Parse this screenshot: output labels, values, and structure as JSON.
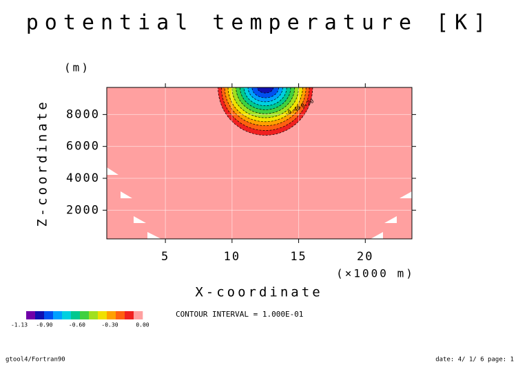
{
  "chart_data": {
    "type": "contour",
    "title": "potential temperature [K]",
    "x_label": "X-coordinate",
    "x_unit": "(×1000 m)",
    "y_label": "Z-coordinate",
    "y_unit": "(m)",
    "xlim": [
      0.6,
      23.5
    ],
    "ylim": [
      200,
      9700
    ],
    "xticks": [
      5,
      10,
      15,
      20
    ],
    "yticks": [
      2000,
      4000,
      6000,
      8000
    ],
    "grid": true,
    "background_color": "#ffa0a0",
    "center_x": 12.5,
    "bands": [
      {
        "value": -0.1,
        "color": "#f02020",
        "halfwidth": 3.55,
        "bottom": 6700
      },
      {
        "value": -0.2,
        "color": "#ff6010",
        "halfwidth": 3.3,
        "bottom": 7000
      },
      {
        "value": -0.3,
        "color": "#ffa000",
        "halfwidth": 3.05,
        "bottom": 7300
      },
      {
        "value": -0.4,
        "color": "#f0e000",
        "halfwidth": 2.8,
        "bottom": 7550
      },
      {
        "value": -0.5,
        "color": "#a0e020",
        "halfwidth": 2.5,
        "bottom": 7800
      },
      {
        "value": -0.6,
        "color": "#40d040",
        "halfwidth": 2.2,
        "bottom": 8050
      },
      {
        "value": -0.7,
        "color": "#00c890",
        "halfwidth": 1.9,
        "bottom": 8300
      },
      {
        "value": -0.8,
        "color": "#00d0e0",
        "halfwidth": 1.6,
        "bottom": 8550
      },
      {
        "value": -0.9,
        "color": "#00a0ff",
        "halfwidth": 1.3,
        "bottom": 8800
      },
      {
        "value": -1.0,
        "color": "#0050f0",
        "halfwidth": 1.0,
        "bottom": 9050
      },
      {
        "value": -1.1,
        "color": "#1010b0",
        "halfwidth": 0.6,
        "bottom": 9350
      }
    ],
    "contour_labels": [
      {
        "value": -0.4,
        "label": "-0.40"
      },
      {
        "value": -0.2,
        "label": "-0.20"
      }
    ],
    "colorbar": {
      "colors": [
        "#7000a8",
        "#1010b0",
        "#0050f0",
        "#00a0ff",
        "#00d0e0",
        "#00c890",
        "#40d040",
        "#a0e020",
        "#f0e000",
        "#ffa000",
        "#ff6010",
        "#f02020",
        "#ffa0a0"
      ],
      "labels": [
        {
          "value": -1.13,
          "label": "-1.13"
        },
        {
          "value": -0.9,
          "label": "-0.90"
        },
        {
          "value": -0.6,
          "label": "-0.60"
        },
        {
          "value": -0.3,
          "label": "-0.30"
        },
        {
          "value": 0,
          "label": "0.00"
        }
      ]
    },
    "contour_interval": "CONTOUR INTERVAL = 1.000E-01",
    "footer_left": "gtool4/Fortran90",
    "footer_right": "date: 4/ 1/ 6 page: 1"
  }
}
